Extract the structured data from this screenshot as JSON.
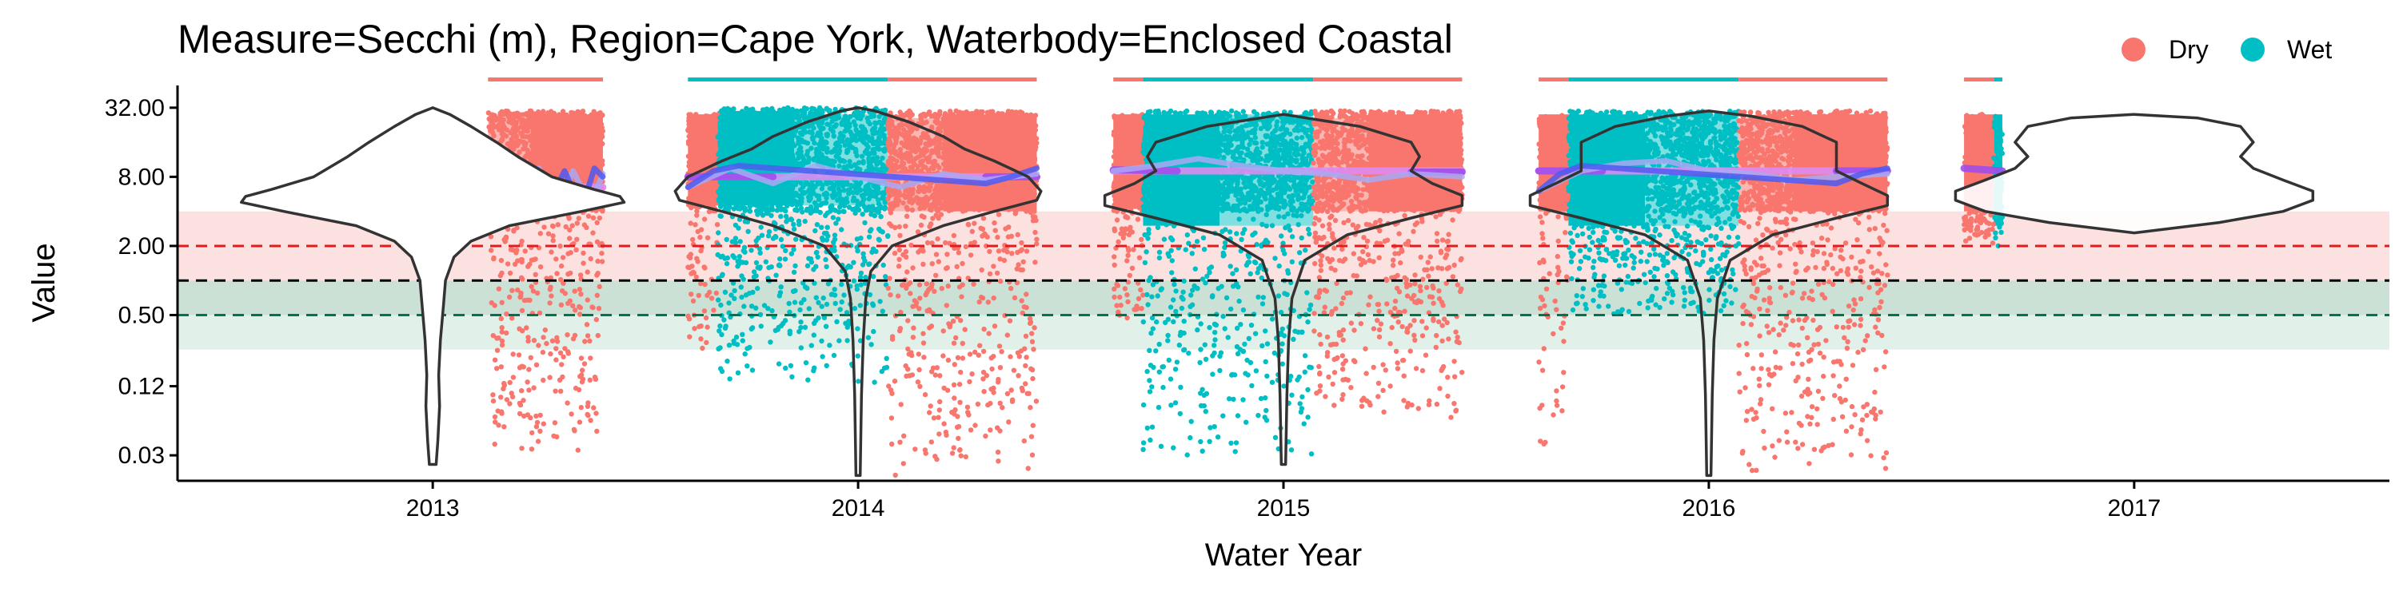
{
  "chart_data": {
    "type": "scatter",
    "title": "Measure=Secchi (m), Region=Cape York, Waterbody=Enclosed Coastal",
    "xlabel": "Water Year",
    "ylabel": "Value",
    "y_scale": "log2",
    "ylim": [
      0.018,
      50
    ],
    "xlim": [
      2012.4,
      2017.6
    ],
    "x_ticks": [
      2013,
      2014,
      2015,
      2016,
      2017
    ],
    "x_tick_labels": [
      "2013",
      "2014",
      "2015",
      "2016",
      "2017"
    ],
    "y_ticks": [
      0.03,
      0.12,
      0.5,
      2,
      8,
      32
    ],
    "y_tick_labels": [
      "0.03",
      "0.12",
      "0.50",
      "2.00",
      "8.00",
      "32.00"
    ],
    "grid": false,
    "legend": {
      "position": "top-right",
      "entries": [
        {
          "label": "Dry",
          "color": "#F8766D"
        },
        {
          "label": "Wet",
          "color": "#00BFC4"
        }
      ]
    },
    "colors": {
      "dry": "#F8766D",
      "wet": "#00BFC4",
      "dry_light": "#FAB7B2",
      "wet_light": "#7FDFE1",
      "trend_blue": "#4F5BF0",
      "trend_light_blue": "#A9A8F5",
      "mean_purple": "#A04DEB",
      "mean_light_purple": "#DC8CF2",
      "red_band": "#FBE2E1",
      "green_band": "#E2F0EA",
      "overlap_band": "#B9D6C4",
      "red_line": "#E41A1C",
      "green_line": "#00734F",
      "black_line": "#000000"
    },
    "reference_lines": [
      {
        "value": 2.0,
        "color": "red",
        "style": "dashed"
      },
      {
        "value": 1.0,
        "color": "black",
        "style": "dashed"
      },
      {
        "value": 0.5,
        "color": "green",
        "style": "dashed"
      }
    ],
    "reference_bands": [
      {
        "from": 1.0,
        "to": 4.0,
        "color": "red"
      },
      {
        "from": 0.25,
        "to": 1.0,
        "color": "green"
      }
    ],
    "season_bars": [
      {
        "from": 2013.13,
        "to": 2013.4,
        "season": "Dry"
      },
      {
        "from": 2013.6,
        "to": 2014.07,
        "season": "Wet"
      },
      {
        "from": 2014.07,
        "to": 2014.42,
        "season": "Dry"
      },
      {
        "from": 2014.6,
        "to": 2014.67,
        "season": "Dry"
      },
      {
        "from": 2014.67,
        "to": 2015.07,
        "season": "Wet"
      },
      {
        "from": 2015.07,
        "to": 2015.42,
        "season": "Dry"
      },
      {
        "from": 2015.6,
        "to": 2015.67,
        "season": "Dry"
      },
      {
        "from": 2015.67,
        "to": 2016.07,
        "season": "Wet"
      },
      {
        "from": 2016.07,
        "to": 2016.42,
        "season": "Dry"
      },
      {
        "from": 2016.6,
        "to": 2016.67,
        "season": "Dry"
      },
      {
        "from": 2016.67,
        "to": 2016.69,
        "season": "Wet"
      }
    ],
    "season_blocks": [
      {
        "from": 2013.13,
        "to": 2013.23,
        "y_from": 4.0,
        "y_to": 28.0,
        "season": "Dry",
        "shade": "light"
      },
      {
        "from": 2013.23,
        "to": 2013.4,
        "y_from": 4.0,
        "y_to": 28.0,
        "season": "Dry",
        "shade": "dark"
      },
      {
        "from": 2013.6,
        "to": 2013.67,
        "y_from": 4.5,
        "y_to": 28.0,
        "season": "Dry",
        "shade": "dark"
      },
      {
        "from": 2013.67,
        "to": 2013.85,
        "y_from": 4.5,
        "y_to": 30.0,
        "season": "Wet",
        "shade": "dark"
      },
      {
        "from": 2013.85,
        "to": 2014.07,
        "y_from": 4.5,
        "y_to": 28.0,
        "season": "Wet",
        "shade": "light"
      },
      {
        "from": 2014.07,
        "to": 2014.2,
        "y_from": 4.0,
        "y_to": 26.0,
        "season": "Dry",
        "shade": "light"
      },
      {
        "from": 2014.2,
        "to": 2014.42,
        "y_from": 4.0,
        "y_to": 28.0,
        "season": "Dry",
        "shade": "dark"
      },
      {
        "from": 2014.6,
        "to": 2014.67,
        "y_from": 4.2,
        "y_to": 28.0,
        "season": "Dry",
        "shade": "dark"
      },
      {
        "from": 2014.67,
        "to": 2014.85,
        "y_from": 3.0,
        "y_to": 28.0,
        "season": "Wet",
        "shade": "dark"
      },
      {
        "from": 2014.85,
        "to": 2015.07,
        "y_from": 3.0,
        "y_to": 28.0,
        "season": "Wet",
        "shade": "light"
      },
      {
        "from": 2015.07,
        "to": 2015.2,
        "y_from": 4.0,
        "y_to": 26.0,
        "season": "Dry",
        "shade": "light"
      },
      {
        "from": 2015.2,
        "to": 2015.42,
        "y_from": 4.0,
        "y_to": 28.0,
        "season": "Dry",
        "shade": "dark"
      },
      {
        "from": 2015.6,
        "to": 2015.67,
        "y_from": 4.0,
        "y_to": 28.0,
        "season": "Dry",
        "shade": "dark"
      },
      {
        "from": 2015.67,
        "to": 2015.85,
        "y_from": 3.0,
        "y_to": 28.0,
        "season": "Wet",
        "shade": "dark"
      },
      {
        "from": 2015.85,
        "to": 2016.07,
        "y_from": 3.0,
        "y_to": 28.0,
        "season": "Wet",
        "shade": "light"
      },
      {
        "from": 2016.07,
        "to": 2016.2,
        "y_from": 4.0,
        "y_to": 26.0,
        "season": "Dry",
        "shade": "light"
      },
      {
        "from": 2016.2,
        "to": 2016.42,
        "y_from": 4.0,
        "y_to": 28.0,
        "season": "Dry",
        "shade": "dark"
      },
      {
        "from": 2016.6,
        "to": 2016.67,
        "y_from": 4.0,
        "y_to": 28.0,
        "season": "Dry",
        "shade": "dark"
      },
      {
        "from": 2016.67,
        "to": 2016.69,
        "y_from": 3.0,
        "y_to": 28.0,
        "season": "Wet",
        "shade": "dark"
      }
    ],
    "violins": [
      {
        "x": 2013.0,
        "y_min": 0.025,
        "y_max": 32,
        "profile": [
          [
            0.025,
            0.008
          ],
          [
            0.04,
            0.012
          ],
          [
            0.08,
            0.016
          ],
          [
            0.15,
            0.014
          ],
          [
            0.3,
            0.018
          ],
          [
            0.6,
            0.025
          ],
          [
            1.0,
            0.03
          ],
          [
            1.6,
            0.05
          ],
          [
            2.2,
            0.09
          ],
          [
            3.0,
            0.18
          ],
          [
            4.0,
            0.35
          ],
          [
            4.8,
            0.45
          ],
          [
            5.4,
            0.44
          ],
          [
            6.2,
            0.38
          ],
          [
            8.0,
            0.28
          ],
          [
            12.0,
            0.2
          ],
          [
            16.0,
            0.15
          ],
          [
            22.0,
            0.09
          ],
          [
            28.0,
            0.04
          ],
          [
            32.0,
            0.0
          ]
        ]
      },
      {
        "x": 2014.0,
        "y_min": 0.02,
        "y_max": 32,
        "profile": [
          [
            0.02,
            0.005
          ],
          [
            0.1,
            0.008
          ],
          [
            0.3,
            0.012
          ],
          [
            0.7,
            0.018
          ],
          [
            1.2,
            0.03
          ],
          [
            2.0,
            0.08
          ],
          [
            3.0,
            0.2
          ],
          [
            4.0,
            0.32
          ],
          [
            5.0,
            0.42
          ],
          [
            6.0,
            0.43
          ],
          [
            8.0,
            0.4
          ],
          [
            11.0,
            0.32
          ],
          [
            14.0,
            0.25
          ],
          [
            18.0,
            0.2
          ],
          [
            24.0,
            0.12
          ],
          [
            30.0,
            0.04
          ],
          [
            32.0,
            0.0
          ]
        ]
      },
      {
        "x": 2015.0,
        "y_min": 0.025,
        "y_max": 28,
        "profile": [
          [
            0.025,
            0.005
          ],
          [
            0.1,
            0.008
          ],
          [
            0.3,
            0.012
          ],
          [
            0.7,
            0.02
          ],
          [
            1.5,
            0.05
          ],
          [
            2.5,
            0.15
          ],
          [
            3.5,
            0.3
          ],
          [
            4.5,
            0.42
          ],
          [
            5.5,
            0.42
          ],
          [
            7.0,
            0.35
          ],
          [
            9.0,
            0.3
          ],
          [
            12.0,
            0.32
          ],
          [
            16.0,
            0.3
          ],
          [
            22.0,
            0.18
          ],
          [
            28.0,
            0.0
          ]
        ]
      },
      {
        "x": 2016.0,
        "y_min": 0.02,
        "y_max": 30,
        "profile": [
          [
            0.02,
            0.005
          ],
          [
            0.1,
            0.008
          ],
          [
            0.3,
            0.012
          ],
          [
            0.7,
            0.02
          ],
          [
            1.5,
            0.05
          ],
          [
            2.5,
            0.15
          ],
          [
            3.5,
            0.3
          ],
          [
            4.5,
            0.42
          ],
          [
            5.5,
            0.42
          ],
          [
            7.0,
            0.36
          ],
          [
            9.0,
            0.3
          ],
          [
            12.0,
            0.3
          ],
          [
            16.0,
            0.3
          ],
          [
            22.0,
            0.22
          ],
          [
            27.0,
            0.1
          ],
          [
            30.0,
            0.0
          ]
        ]
      },
      {
        "x": 2017.0,
        "y_min": 2.6,
        "y_max": 28,
        "profile": [
          [
            2.6,
            0.0
          ],
          [
            3.2,
            0.2
          ],
          [
            4.0,
            0.35
          ],
          [
            5.0,
            0.42
          ],
          [
            6.0,
            0.42
          ],
          [
            7.5,
            0.35
          ],
          [
            9.5,
            0.28
          ],
          [
            12.0,
            0.25
          ],
          [
            16.0,
            0.28
          ],
          [
            22.0,
            0.25
          ],
          [
            26.0,
            0.15
          ],
          [
            28.0,
            0.0
          ]
        ]
      }
    ],
    "trend_lines": [
      {
        "name": "mean",
        "color": "mean_light_purple",
        "points": [
          [
            2013.13,
            6.5
          ],
          [
            2013.4,
            6.5
          ]
        ]
      },
      {
        "name": "mean",
        "color": "mean_light_purple",
        "points": [
          [
            2013.6,
            8.0
          ],
          [
            2014.42,
            8.0
          ]
        ]
      },
      {
        "name": "mean",
        "color": "mean_light_purple",
        "points": [
          [
            2014.6,
            9.0
          ],
          [
            2015.42,
            9.0
          ]
        ]
      },
      {
        "name": "mean",
        "color": "mean_light_purple",
        "points": [
          [
            2015.6,
            9.0
          ],
          [
            2016.42,
            9.0
          ]
        ]
      },
      {
        "name": "mean",
        "color": "mean_purple",
        "points": [
          [
            2013.6,
            8.0
          ],
          [
            2013.8,
            8.0
          ]
        ]
      },
      {
        "name": "mean",
        "color": "mean_purple",
        "points": [
          [
            2014.3,
            8.0
          ],
          [
            2014.42,
            8.0
          ]
        ]
      },
      {
        "name": "mean",
        "color": "mean_purple",
        "points": [
          [
            2014.6,
            9.2
          ],
          [
            2014.75,
            9.0
          ]
        ]
      },
      {
        "name": "mean",
        "color": "mean_purple",
        "points": [
          [
            2015.3,
            8.8
          ],
          [
            2015.42,
            8.8
          ]
        ]
      },
      {
        "name": "mean",
        "color": "mean_purple",
        "points": [
          [
            2015.6,
            9.0
          ],
          [
            2015.75,
            9.0
          ]
        ]
      },
      {
        "name": "mean",
        "color": "mean_purple",
        "points": [
          [
            2016.3,
            9.0
          ],
          [
            2016.42,
            9.0
          ]
        ]
      },
      {
        "name": "mean",
        "color": "mean_purple",
        "points": [
          [
            2016.6,
            9.5
          ],
          [
            2016.69,
            9.0
          ]
        ]
      },
      {
        "name": "trend",
        "color": "trend_light_blue",
        "points": [
          [
            2013.13,
            5.5
          ],
          [
            2013.17,
            8.0
          ],
          [
            2013.21,
            4.5
          ],
          [
            2013.25,
            9.5
          ],
          [
            2013.29,
            4.0
          ],
          [
            2013.33,
            9.0
          ],
          [
            2013.37,
            4.5
          ],
          [
            2013.4,
            8.5
          ]
        ]
      },
      {
        "name": "trend",
        "color": "trend_blue",
        "points": [
          [
            2013.23,
            7.5
          ],
          [
            2013.27,
            4.5
          ],
          [
            2013.31,
            9.0
          ],
          [
            2013.35,
            4.2
          ],
          [
            2013.38,
            9.5
          ],
          [
            2013.4,
            8.0
          ]
        ]
      },
      {
        "name": "trend",
        "color": "trend_light_blue",
        "points": [
          [
            2013.6,
            6.5
          ],
          [
            2013.7,
            9.5
          ],
          [
            2013.8,
            7.0
          ],
          [
            2013.9,
            10.0
          ],
          [
            2014.0,
            8.0
          ],
          [
            2014.1,
            6.5
          ],
          [
            2014.2,
            8.5
          ],
          [
            2014.3,
            7.5
          ],
          [
            2014.42,
            8.5
          ]
        ]
      },
      {
        "name": "trend",
        "color": "trend_blue",
        "points": [
          [
            2013.6,
            6.5
          ],
          [
            2013.66,
            9.0
          ],
          [
            2013.72,
            10.0
          ],
          [
            2014.3,
            7.0
          ],
          [
            2014.36,
            8.0
          ],
          [
            2014.42,
            9.5
          ]
        ]
      },
      {
        "name": "trend",
        "color": "trend_light_blue",
        "points": [
          [
            2014.6,
            9.0
          ],
          [
            2014.7,
            10.0
          ],
          [
            2014.8,
            11.5
          ],
          [
            2014.9,
            10.0
          ],
          [
            2015.0,
            9.0
          ],
          [
            2015.1,
            8.5
          ],
          [
            2015.2,
            7.5
          ],
          [
            2015.3,
            8.5
          ],
          [
            2015.42,
            8.0
          ]
        ]
      },
      {
        "name": "trend",
        "color": "trend_light_blue",
        "points": [
          [
            2015.6,
            6.0
          ],
          [
            2015.7,
            9.0
          ],
          [
            2015.8,
            10.5
          ],
          [
            2015.9,
            11.0
          ],
          [
            2016.0,
            9.0
          ],
          [
            2016.1,
            8.5
          ],
          [
            2016.2,
            7.5
          ],
          [
            2016.3,
            8.0
          ],
          [
            2016.42,
            8.5
          ]
        ]
      },
      {
        "name": "trend",
        "color": "trend_blue",
        "points": [
          [
            2015.6,
            6.0
          ],
          [
            2015.65,
            8.5
          ],
          [
            2015.7,
            10.0
          ],
          [
            2016.3,
            7.0
          ],
          [
            2016.36,
            8.5
          ],
          [
            2016.42,
            9.5
          ]
        ]
      }
    ],
    "scatter_clusters": [
      {
        "season": "Dry",
        "x_from": 2013.13,
        "x_to": 2013.4,
        "y_low": 0.03,
        "y_high": 30,
        "points": 1400
      },
      {
        "season": "Dry",
        "x_from": 2013.6,
        "x_to": 2013.67,
        "y_low": 0.2,
        "y_high": 28,
        "points": 300
      },
      {
        "season": "Wet",
        "x_from": 2013.67,
        "x_to": 2014.07,
        "y_low": 0.12,
        "y_high": 32,
        "points": 1800
      },
      {
        "season": "Dry",
        "x_from": 2014.07,
        "x_to": 2014.42,
        "y_low": 0.02,
        "y_high": 30,
        "points": 1700
      },
      {
        "season": "Dry",
        "x_from": 2014.6,
        "x_to": 2014.67,
        "y_low": 0.4,
        "y_high": 28,
        "points": 300
      },
      {
        "season": "Wet",
        "x_from": 2014.67,
        "x_to": 2015.07,
        "y_low": 0.03,
        "y_high": 30,
        "points": 1800
      },
      {
        "season": "Dry",
        "x_from": 2015.07,
        "x_to": 2015.42,
        "y_low": 0.06,
        "y_high": 30,
        "points": 1700
      },
      {
        "season": "Dry",
        "x_from": 2015.6,
        "x_to": 2015.67,
        "y_low": 0.03,
        "y_high": 28,
        "points": 300
      },
      {
        "season": "Wet",
        "x_from": 2015.67,
        "x_to": 2016.07,
        "y_low": 0.5,
        "y_high": 30,
        "points": 1800
      },
      {
        "season": "Dry",
        "x_from": 2016.07,
        "x_to": 2016.42,
        "y_low": 0.02,
        "y_high": 30,
        "points": 1700
      },
      {
        "season": "Dry",
        "x_from": 2016.6,
        "x_to": 2016.67,
        "y_low": 2.0,
        "y_high": 28,
        "points": 200
      },
      {
        "season": "Wet",
        "x_from": 2016.67,
        "x_to": 2016.69,
        "y_low": 1.8,
        "y_high": 28,
        "points": 80
      }
    ]
  }
}
